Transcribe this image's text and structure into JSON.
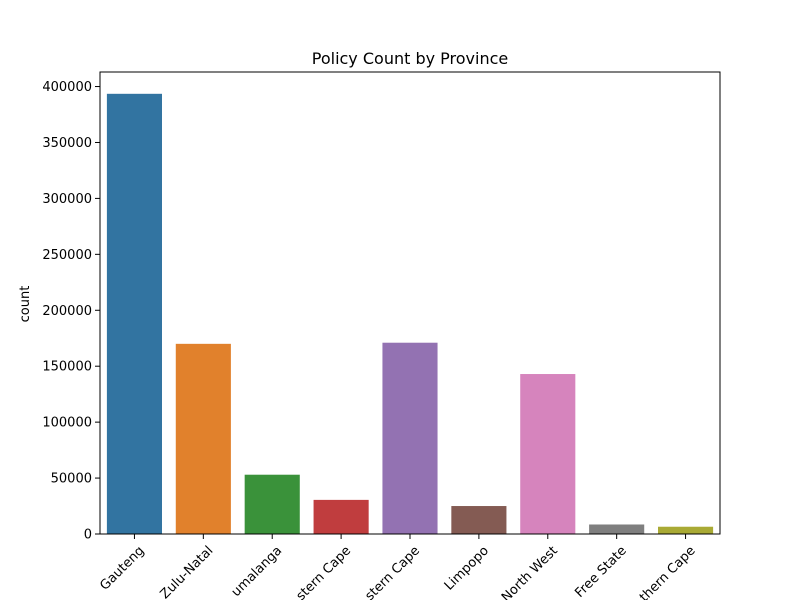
{
  "chart_data": {
    "type": "bar",
    "title": "Policy Count by Province",
    "xlabel": "",
    "ylabel": "count",
    "ylim": [
      0,
      413000
    ],
    "yticks": [
      0,
      50000,
      100000,
      150000,
      200000,
      250000,
      300000,
      350000,
      400000
    ],
    "ytick_labels": [
      "0",
      "50000",
      "100000",
      "150000",
      "200000",
      "250000",
      "300000",
      "350000",
      "400000"
    ],
    "categories": [
      "Gauteng",
      "Zulu-Natal",
      "umalanga",
      "stern Cape",
      "stern Cape",
      "Limpopo",
      "North West",
      "Free State",
      "thern Cape"
    ],
    "values": [
      393500,
      170000,
      53000,
      30500,
      171000,
      25000,
      143000,
      8500,
      6500
    ],
    "colors": [
      "#3274a1",
      "#e1812c",
      "#3a923a",
      "#c03d3e",
      "#9372b2",
      "#845b53",
      "#d684bd",
      "#7f7f7f",
      "#a9aa35"
    ],
    "grid": false,
    "legend": "none"
  }
}
